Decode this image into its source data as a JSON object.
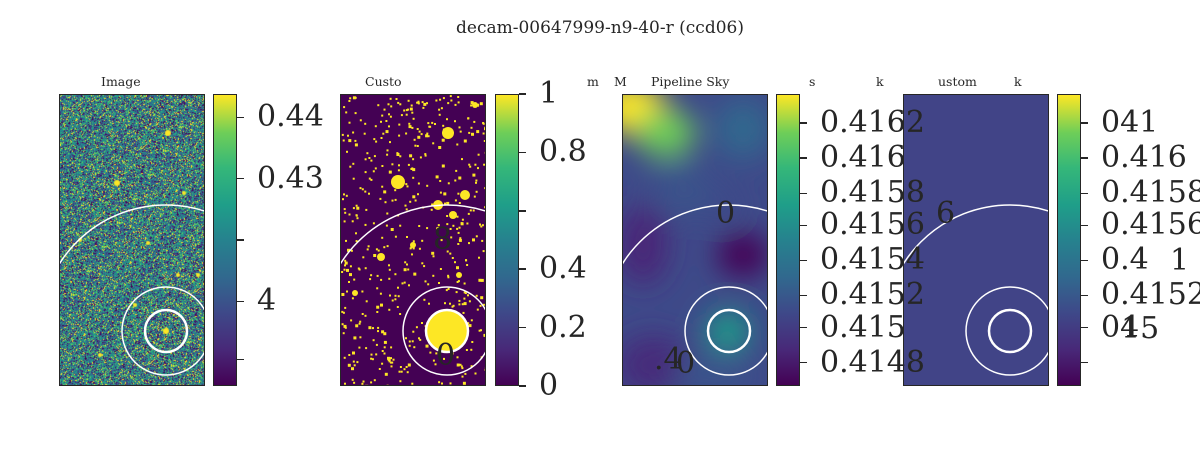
{
  "figure": {
    "title": "decam-00647999-n9-40-r (ccd06)"
  },
  "chart_data": [
    {
      "type": "heatmap",
      "title": "Image",
      "colormap": "viridis",
      "colorbar_ticks": [
        "0.44",
        "0.43",
        "",
        "4",
        ""
      ],
      "colorbar_tick_fracs": [
        0.92,
        0.71,
        0.5,
        0.29,
        0.09
      ],
      "stray_text": []
    },
    {
      "type": "heatmap",
      "title": "Custo",
      "colormap": "viridis",
      "colorbar_ticks": [
        "1",
        "0.8",
        "",
        "0.4",
        "0.2",
        "0"
      ],
      "colorbar_tick_fracs": [
        1.0,
        0.8,
        0.6,
        0.4,
        0.2,
        0.0
      ],
      "stray_text": [
        "8",
        "0"
      ]
    },
    {
      "type": "heatmap",
      "title": "Pipeline Sky",
      "colormap": "viridis",
      "colorbar_ticks": [
        "0.4162",
        "0.416",
        "0.4158",
        "0.4156",
        "0.4154",
        "0.4152",
        "0.415",
        "0.4148"
      ],
      "colorbar_tick_fracs": [
        0.9,
        0.78,
        0.66,
        0.55,
        0.43,
        0.31,
        0.2,
        0.08
      ],
      "stray_text": [
        "0",
        ".4",
        "0"
      ]
    },
    {
      "type": "heatmap",
      "title": "ustom",
      "colormap": "viridis",
      "colorbar_ticks": [
        "041",
        "0.416",
        "0.4158",
        "0.4156",
        "0.4",
        "0.4152",
        "04",
        ""
      ],
      "colorbar_tick_fracs": [
        0.9,
        0.78,
        0.66,
        0.55,
        0.43,
        0.31,
        0.2,
        0.08
      ],
      "stray_text": [
        "6",
        "1",
        "15"
      ]
    }
  ],
  "fragments": [
    "m",
    "M",
    "s",
    "k",
    "k"
  ]
}
